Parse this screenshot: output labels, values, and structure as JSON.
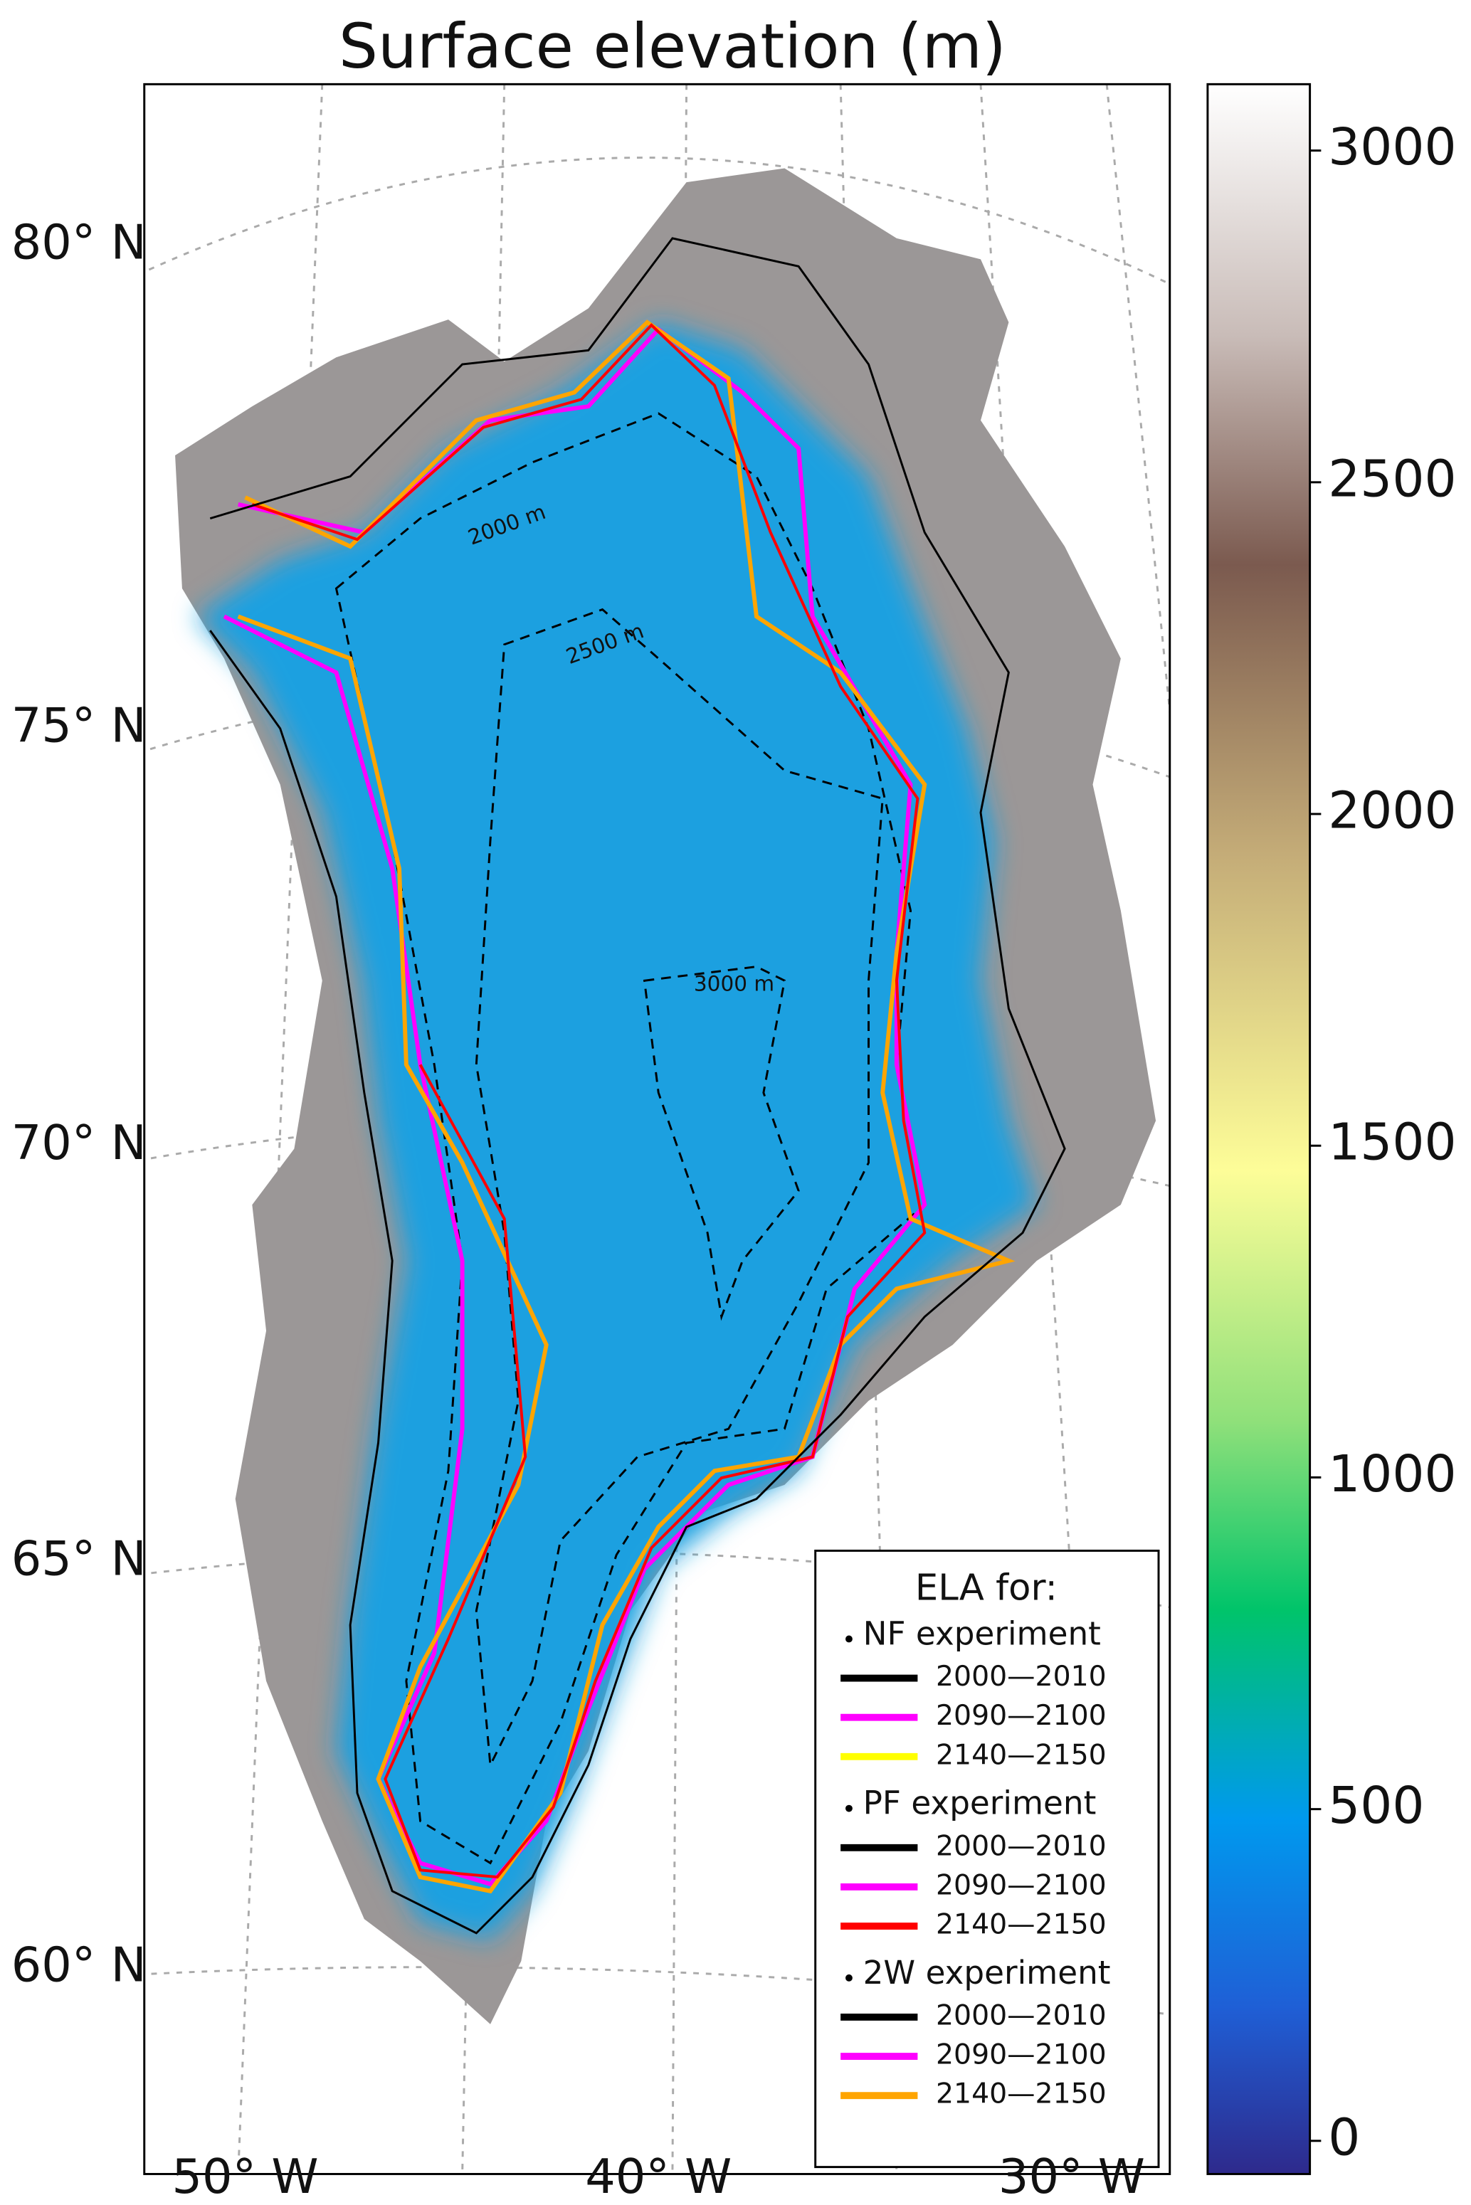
{
  "title": "Surface elevation (m)",
  "latitude_labels": [
    "80° N",
    "75° N",
    "70° N",
    "65° N",
    "60° N"
  ],
  "longitude_labels": [
    "50° W",
    "40° W",
    "30° W"
  ],
  "contour_labels": [
    "2000 m",
    "2500 m",
    "3000 m"
  ],
  "legend": {
    "title": "ELA for:",
    "groups": [
      {
        "name": "NF experiment",
        "entries": [
          {
            "label": "2000—2010",
            "color": "#000000"
          },
          {
            "label": "2090—2100",
            "color": "#ff00ff"
          },
          {
            "label": "2140—2150",
            "color": "#ffff00"
          }
        ]
      },
      {
        "name": "PF experiment",
        "entries": [
          {
            "label": "2000—2010",
            "color": "#000000"
          },
          {
            "label": "2090—2100",
            "color": "#ff00ff"
          },
          {
            "label": "2140—2150",
            "color": "#ff0000"
          }
        ]
      },
      {
        "name": "2W experiment",
        "entries": [
          {
            "label": "2000—2010",
            "color": "#000000"
          },
          {
            "label": "2090—2100",
            "color": "#ff00ff"
          },
          {
            "label": "2140—2150",
            "color": "#ffa500"
          }
        ]
      }
    ]
  },
  "colorbar": {
    "range": [
      -50,
      3100
    ],
    "ticks": [
      0,
      500,
      1000,
      1500,
      2000,
      2500,
      3000
    ]
  }
}
